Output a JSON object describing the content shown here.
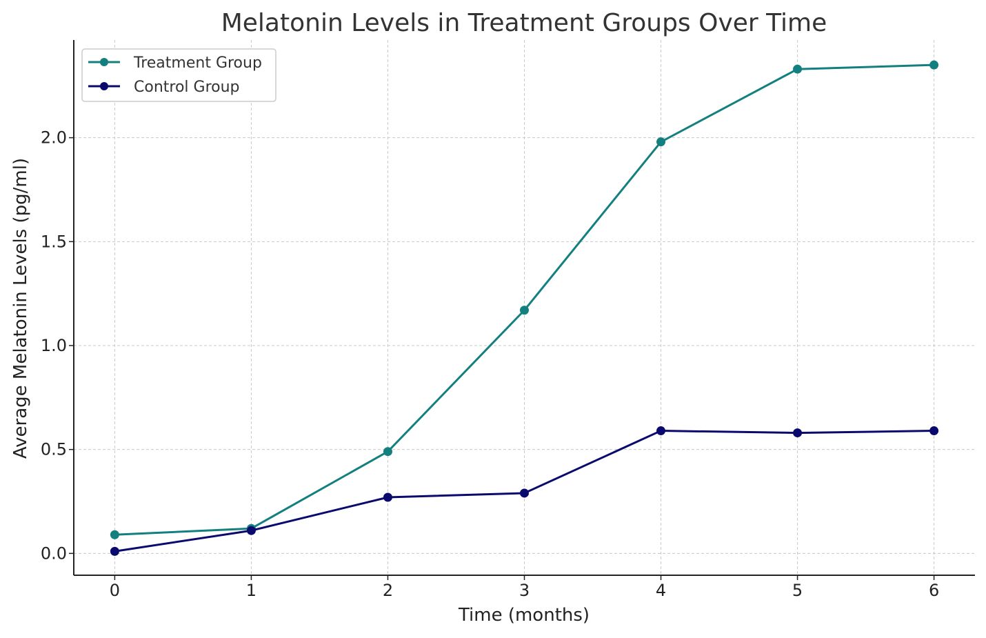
{
  "chart_data": {
    "type": "line",
    "title": "Melatonin Levels in Treatment Groups Over Time",
    "xlabel": "Time (months)",
    "ylabel": "Average Melatonin Levels (pg/ml)",
    "x": [
      0,
      1,
      2,
      3,
      4,
      5,
      6
    ],
    "xticks": [
      "0",
      "1",
      "2",
      "3",
      "4",
      "5",
      "6"
    ],
    "yticks": [
      "0.0",
      "0.5",
      "1.0",
      "1.5",
      "2.0"
    ],
    "xlim": [
      -0.3,
      6.3
    ],
    "ylim": [
      -0.105,
      2.47
    ],
    "grid": true,
    "legend_position": "top-left",
    "series": [
      {
        "name": "Treatment Group",
        "color": "#137f7f",
        "values": [
          0.09,
          0.12,
          0.49,
          1.17,
          1.98,
          2.33,
          2.35
        ]
      },
      {
        "name": "Control Group",
        "color": "#0a0a6e",
        "values": [
          0.01,
          0.11,
          0.27,
          0.29,
          0.59,
          0.58,
          0.59
        ]
      }
    ]
  }
}
